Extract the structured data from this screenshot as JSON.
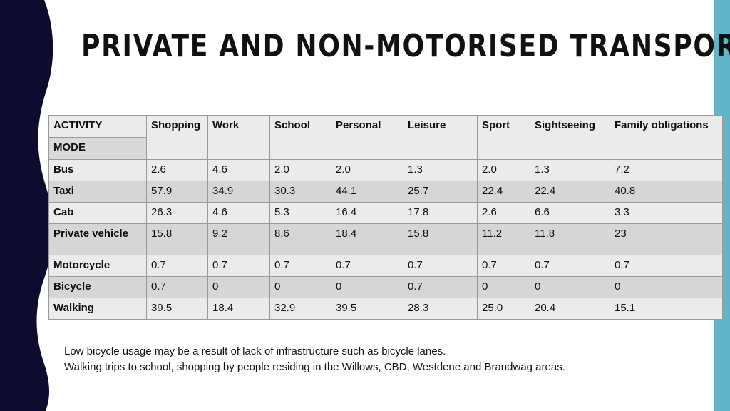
{
  "title": "PRIVATE AND NON-MOTORISED TRANSPORT",
  "colors": {
    "left_panel": "#0d0c2e",
    "right_bar": "#62b5c9",
    "cell_light": "#ebebeb",
    "cell_dark": "#d6d6d6"
  },
  "table": {
    "corner_top": "ACTIVITY",
    "corner_bottom": "MODE",
    "columns": [
      "Shopping",
      "Work",
      "School",
      "Personal",
      "Leisure",
      "Sport",
      "Sightseeing",
      "Family obligations"
    ],
    "rows": [
      {
        "label": "Bus",
        "values": [
          "2.6",
          "4.6",
          "2.0",
          "2.0",
          "1.3",
          "2.0",
          "1.3",
          "7.2"
        ]
      },
      {
        "label": "Taxi",
        "values": [
          "57.9",
          "34.9",
          "30.3",
          "44.1",
          "25.7",
          "22.4",
          "22.4",
          "40.8"
        ]
      },
      {
        "label": "Cab",
        "values": [
          "26.3",
          "4.6",
          "5.3",
          "16.4",
          "17.8",
          "2.6",
          "6.6",
          "3.3"
        ]
      },
      {
        "label": "Private vehicle",
        "values": [
          "15.8",
          "9.2",
          "8.6",
          "18.4",
          "15.8",
          "11.2",
          "11.8",
          "23"
        ]
      },
      {
        "label": "Motorcycle",
        "values": [
          "0.7",
          "0.7",
          "0.7",
          "0.7",
          "0.7",
          "0.7",
          "0.7",
          "0.7"
        ]
      },
      {
        "label": "Bicycle",
        "values": [
          "0.7",
          "0",
          "0",
          "0",
          "0.7",
          "0",
          "0",
          "0"
        ]
      },
      {
        "label": "Walking",
        "values": [
          "39.5",
          "18.4",
          "32.9",
          "39.5",
          "28.3",
          "25.0",
          "20.4",
          "15.1"
        ]
      }
    ]
  },
  "notes": [
    "Low bicycle usage may be a result of lack of infrastructure such as bicycle lanes.",
    "Walking trips to school, shopping  by people residing in the Willows, CBD, Westdene and Brandwag areas."
  ]
}
